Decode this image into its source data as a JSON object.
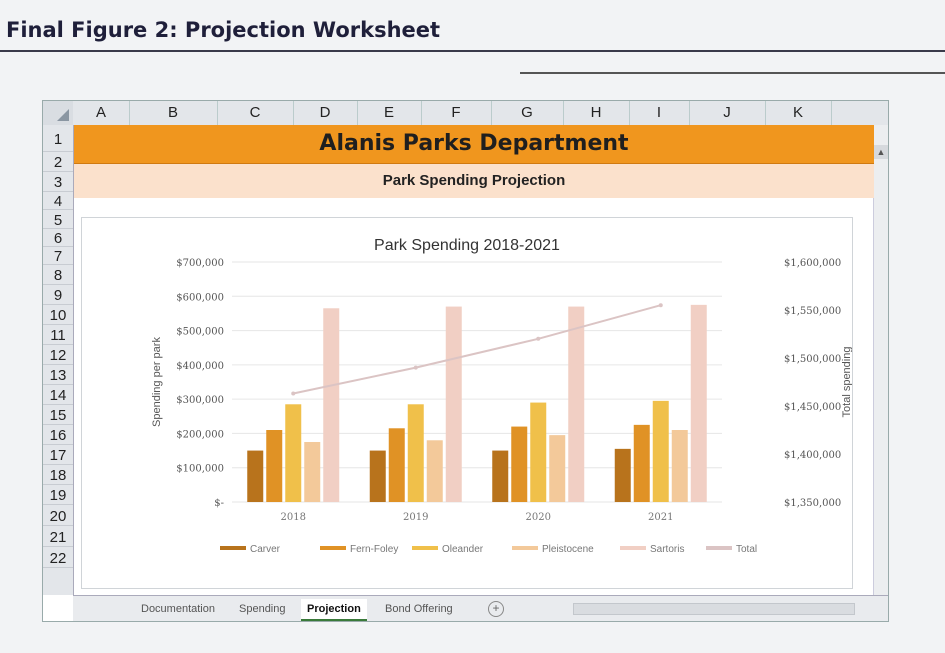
{
  "figure": {
    "title": "Final Figure 2: Projection Worksheet"
  },
  "sheet": {
    "columns": [
      "A",
      "B",
      "C",
      "D",
      "E",
      "F",
      "G",
      "H",
      "I",
      "J",
      "K"
    ],
    "rows": [
      "1",
      "2",
      "3",
      "4",
      "5",
      "6",
      "7",
      "8",
      "9",
      "10",
      "11",
      "12",
      "13",
      "14",
      "15",
      "16",
      "17",
      "18",
      "19",
      "20",
      "21",
      "22"
    ],
    "title": "Alanis Parks Department",
    "subtitle": "Park Spending Projection"
  },
  "tabs": [
    {
      "label": "Documentation",
      "active": false
    },
    {
      "label": "Spending",
      "active": false
    },
    {
      "label": "Projection",
      "active": true
    },
    {
      "label": "Bond Offering",
      "active": false
    }
  ],
  "tab_add_label": "+",
  "colors": {
    "Carver": "#b8731c",
    "Fern-Foley": "#e09225",
    "Oleander": "#f0c04a",
    "Pleistocene": "#f3c99a",
    "Sartoris": "#f1cfc4",
    "Total": "#dbc4c4"
  },
  "chart_data": {
    "type": "bar",
    "title": "Park Spending 2018-2021",
    "categories": [
      "2018",
      "2019",
      "2020",
      "2021"
    ],
    "ylabel": "Spending per park",
    "y2label": "Total spending",
    "ylim": [
      0,
      700000
    ],
    "y2lim": [
      1350000,
      1600000
    ],
    "yticks": [
      "$700,000",
      "$600,000",
      "$500,000",
      "$400,000",
      "$300,000",
      "$200,000",
      "$100,000",
      "$-"
    ],
    "y2ticks": [
      "$1,600,000",
      "$1,550,000",
      "$1,500,000",
      "$1,450,000",
      "$1,400,000",
      "$1,350,000"
    ],
    "series": [
      {
        "name": "Carver",
        "values": [
          150000,
          150000,
          150000,
          155000
        ]
      },
      {
        "name": "Fern-Foley",
        "values": [
          210000,
          215000,
          220000,
          225000
        ]
      },
      {
        "name": "Oleander",
        "values": [
          285000,
          285000,
          290000,
          295000
        ]
      },
      {
        "name": "Pleistocene",
        "values": [
          175000,
          180000,
          195000,
          210000
        ]
      },
      {
        "name": "Sartoris",
        "values": [
          565000,
          570000,
          570000,
          575000
        ]
      }
    ],
    "line_series": {
      "name": "Total",
      "values": [
        1463000,
        1490000,
        1520000,
        1555000
      ]
    },
    "legend_position": "bottom",
    "grid": true
  }
}
